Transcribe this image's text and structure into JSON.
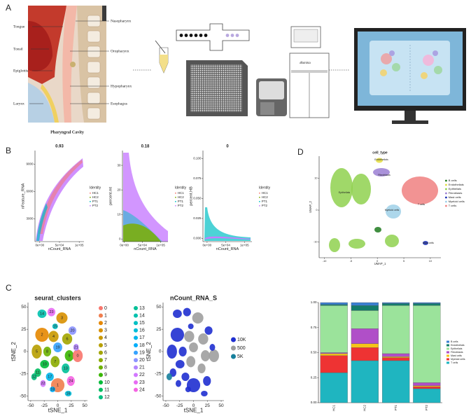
{
  "figure": {
    "panel_labels": [
      "A",
      "B",
      "C",
      "D"
    ]
  },
  "panel_a": {
    "labels_left": [
      "Tongue",
      "Tonsil",
      "Epiglottis",
      "Larynx"
    ],
    "labels_right": [
      "Nasopharynx",
      "Oropharynx",
      "Hypopharynx",
      "Esophagus"
    ],
    "caption": "Pharyngeal Cavity",
    "instrument": "Illumina"
  },
  "chart_data": [
    {
      "type": "scatter",
      "title": "0.93",
      "x_label": "nCount_RNA",
      "y_label": "nFeature_RNA",
      "xlim": [
        -12000,
        112000
      ],
      "xticks": [
        {
          "value": 0,
          "label": "0e+00"
        },
        {
          "value": 50000,
          "label": "5e+04"
        },
        {
          "value": 100000,
          "label": "1e+05"
        }
      ],
      "ylim": [
        500,
        10500
      ],
      "yticks": [
        3000,
        6000,
        9000
      ],
      "legend_title": "Identity",
      "legend": [
        {
          "name": "HC1",
          "color": "#f8766d"
        },
        {
          "name": "HC2",
          "color": "#7cae00"
        },
        {
          "name": "PT1",
          "color": "#00bfc4"
        },
        {
          "name": "PT2",
          "color": "#c77cff"
        }
      ]
    },
    {
      "type": "scatter",
      "title": "0.18",
      "x_label": "nCount_RNA",
      "y_label": "percent.mt",
      "xlim": [
        -5000,
        120000
      ],
      "xticks": [
        {
          "value": 0,
          "label": "0e+00"
        },
        {
          "value": 50000,
          "label": "5e+04"
        },
        {
          "value": 100000,
          "label": "1e+05"
        }
      ],
      "ylim": [
        -1,
        36
      ],
      "yticks": [
        0,
        10,
        20,
        30
      ],
      "legend_title": "Identity",
      "legend": [
        {
          "name": "HC1",
          "color": "#f8766d"
        },
        {
          "name": "HC2",
          "color": "#7cae00"
        },
        {
          "name": "PT1",
          "color": "#00bfc4"
        },
        {
          "name": "PT2",
          "color": "#c77cff"
        }
      ]
    },
    {
      "type": "scatter",
      "title": "0",
      "x_label": "nCount_RNA",
      "y_label": "percent.HB",
      "xlim": [
        -11000,
        120000
      ],
      "xticks": [
        {
          "value": 0,
          "label": "0e+00"
        },
        {
          "value": 50000,
          "label": "5e+04"
        },
        {
          "value": 100000,
          "label": "1e+05"
        }
      ],
      "ylim": [
        -0.004,
        0.11
      ],
      "yticks": [
        {
          "value": 0,
          "label": "0.000"
        },
        {
          "value": 0.025,
          "label": "0.025"
        },
        {
          "value": 0.05,
          "label": "0.050"
        },
        {
          "value": 0.075,
          "label": "0.075"
        },
        {
          "value": 0.1,
          "label": "0.100"
        }
      ],
      "legend_title": "Identity",
      "legend": [
        {
          "name": "HC1",
          "color": "#f8766d"
        },
        {
          "name": "HC2",
          "color": "#7cae00"
        },
        {
          "name": "PT1",
          "color": "#00bfc4"
        },
        {
          "name": "PT2",
          "color": "#c77cff"
        }
      ]
    },
    {
      "type": "scatter",
      "title": "cell_type",
      "x_label": "UMAP_1",
      "y_label": "UMAP_2",
      "xlim": [
        -11,
        12
      ],
      "xticks": [
        -10,
        -5,
        0,
        5,
        10
      ],
      "ylim": [
        -15,
        17
      ],
      "yticks": [
        -10,
        0,
        10
      ],
      "legend": [
        {
          "name": "B cells",
          "color": "#1f7a1f"
        },
        {
          "name": "Endothelials",
          "color": "#e3dc3c"
        },
        {
          "name": "Epithelials",
          "color": "#8fd14f"
        },
        {
          "name": "Fibroblasts",
          "color": "#9b7fd4"
        },
        {
          "name": "Mast cells",
          "color": "#1a2fb5"
        },
        {
          "name": "Myeloid cells",
          "color": "#9fd0e8"
        },
        {
          "name": "T cells",
          "color": "#f08080"
        }
      ]
    },
    {
      "type": "scatter",
      "title": "seurat_clusters",
      "x_label": "tSNE_1",
      "y_label": "tSNE_2",
      "xlim": [
        -55,
        55
      ],
      "xticks": [
        -50,
        -25,
        0,
        25,
        50
      ],
      "ylim": [
        -55,
        55
      ],
      "yticks": [
        -50,
        -25,
        0,
        25,
        50
      ],
      "legend": [
        {
          "name": "0",
          "color": "#f8766d"
        },
        {
          "name": "1",
          "color": "#f07e4e"
        },
        {
          "name": "2",
          "color": "#e58700"
        },
        {
          "name": "3",
          "color": "#d89000"
        },
        {
          "name": "4",
          "color": "#c99800"
        },
        {
          "name": "5",
          "color": "#b79f00"
        },
        {
          "name": "6",
          "color": "#a3a500"
        },
        {
          "name": "7",
          "color": "#8bab00"
        },
        {
          "name": "8",
          "color": "#6bb100"
        },
        {
          "name": "9",
          "color": "#39b600"
        },
        {
          "name": "10",
          "color": "#00ba38"
        },
        {
          "name": "11",
          "color": "#00bd5f"
        },
        {
          "name": "12",
          "color": "#00bf7d"
        },
        {
          "name": "13",
          "color": "#00c097"
        },
        {
          "name": "14",
          "color": "#00c1ae"
        },
        {
          "name": "15",
          "color": "#00c0c4"
        },
        {
          "name": "16",
          "color": "#00bcd8"
        },
        {
          "name": "17",
          "color": "#00b6eb"
        },
        {
          "name": "18",
          "color": "#00aefa"
        },
        {
          "name": "19",
          "color": "#35a2ff"
        },
        {
          "name": "20",
          "color": "#8b93ff"
        },
        {
          "name": "21",
          "color": "#b385ff"
        },
        {
          "name": "22",
          "color": "#d277ff"
        },
        {
          "name": "23",
          "color": "#e76bf3"
        },
        {
          "name": "24",
          "color": "#f564e3"
        }
      ]
    },
    {
      "type": "scatter",
      "title": "nCount_RNA_S",
      "x_label": "tSNE_1",
      "y_label": "tSNE_2",
      "xlim": [
        -55,
        55
      ],
      "xticks": [
        -50,
        -25,
        0,
        25,
        50
      ],
      "ylim": [
        -55,
        55
      ],
      "yticks": [
        -50,
        -25,
        0,
        25,
        50
      ],
      "legend": [
        {
          "name": "10K",
          "color": "#1f2fd0"
        },
        {
          "name": "500",
          "color": "#9e9e9e"
        },
        {
          "name": "5K",
          "color": "#17809c"
        }
      ]
    },
    {
      "type": "bar",
      "stacked": true,
      "categories": [
        "HC1",
        "HC2",
        "PT1",
        "PT2"
      ],
      "ylim": [
        0,
        1
      ],
      "yticks": [
        {
          "value": 0,
          "label": "0.00"
        },
        {
          "value": 0.25,
          "label": "0.25"
        },
        {
          "value": 0.5,
          "label": "0.50"
        },
        {
          "value": 0.75,
          "label": "0.75"
        },
        {
          "value": 1,
          "label": "1.00"
        }
      ],
      "series": [
        {
          "name": "B cells",
          "color": "#3a7fd0",
          "values": [
            0.02,
            0.03,
            0.01,
            0.01
          ]
        },
        {
          "name": "Endothelials",
          "color": "#137d6b",
          "values": [
            0.01,
            0.05,
            0.02,
            0.02
          ]
        },
        {
          "name": "Epithelials",
          "color": "#9be39b",
          "values": [
            0.47,
            0.18,
            0.48,
            0.77
          ]
        },
        {
          "name": "Fibroblasts",
          "color": "#b04fc8",
          "values": [
            0.01,
            0.15,
            0.03,
            0.03
          ]
        },
        {
          "name": "Mast cells",
          "color": "#f5c518",
          "values": [
            0.02,
            0.04,
            0.01,
            0.01
          ]
        },
        {
          "name": "Myeloid cells",
          "color": "#ee3333",
          "values": [
            0.17,
            0.13,
            0.03,
            0.02
          ]
        },
        {
          "name": "T cells",
          "color": "#1fb5c0",
          "values": [
            0.3,
            0.42,
            0.42,
            0.14
          ]
        }
      ]
    }
  ]
}
